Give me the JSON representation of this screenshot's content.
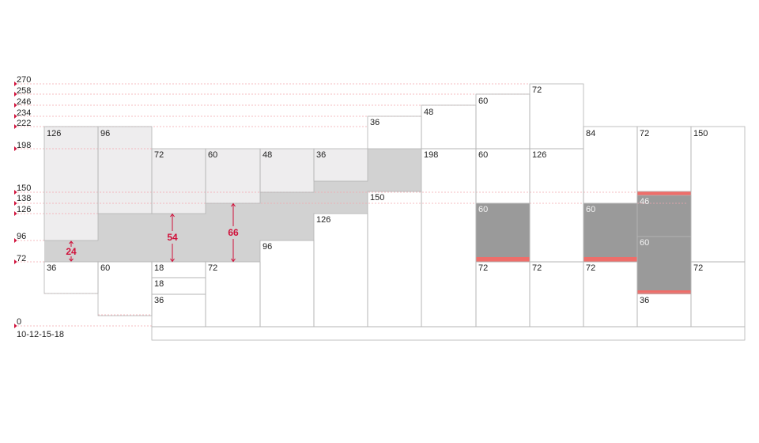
{
  "colors": {
    "ref_line": "#f2a7ae",
    "arrow_tri": "#d0103a",
    "cell_border": "#b3b3b3",
    "light_fill": "#eeedee",
    "mid_fill": "#d2d2d2",
    "dark_fill": "#9a9a9a",
    "accent_bar": "#ee6e6a",
    "measure": "#d0103a",
    "text": "#222222",
    "text_on_dark": "#f4f4f4"
  },
  "y_levels": [
    "270",
    "258",
    "246",
    "234",
    "222",
    "198",
    "150",
    "138",
    "126",
    "96",
    "72",
    "0"
  ],
  "footer_label": "10-12-15-18",
  "cell_labels": [
    "126",
    "96",
    "72",
    "60",
    "48",
    "36",
    "36",
    "48",
    "60",
    "72",
    "198",
    "60",
    "126",
    "84",
    "72",
    "150",
    "150",
    "126",
    "96",
    "60",
    "60",
    "46",
    "60",
    "36",
    "60",
    "18",
    "18",
    "36",
    "72",
    "72",
    "72",
    "72",
    "72",
    "36"
  ],
  "measurements": [
    "24",
    "54",
    "66"
  ]
}
